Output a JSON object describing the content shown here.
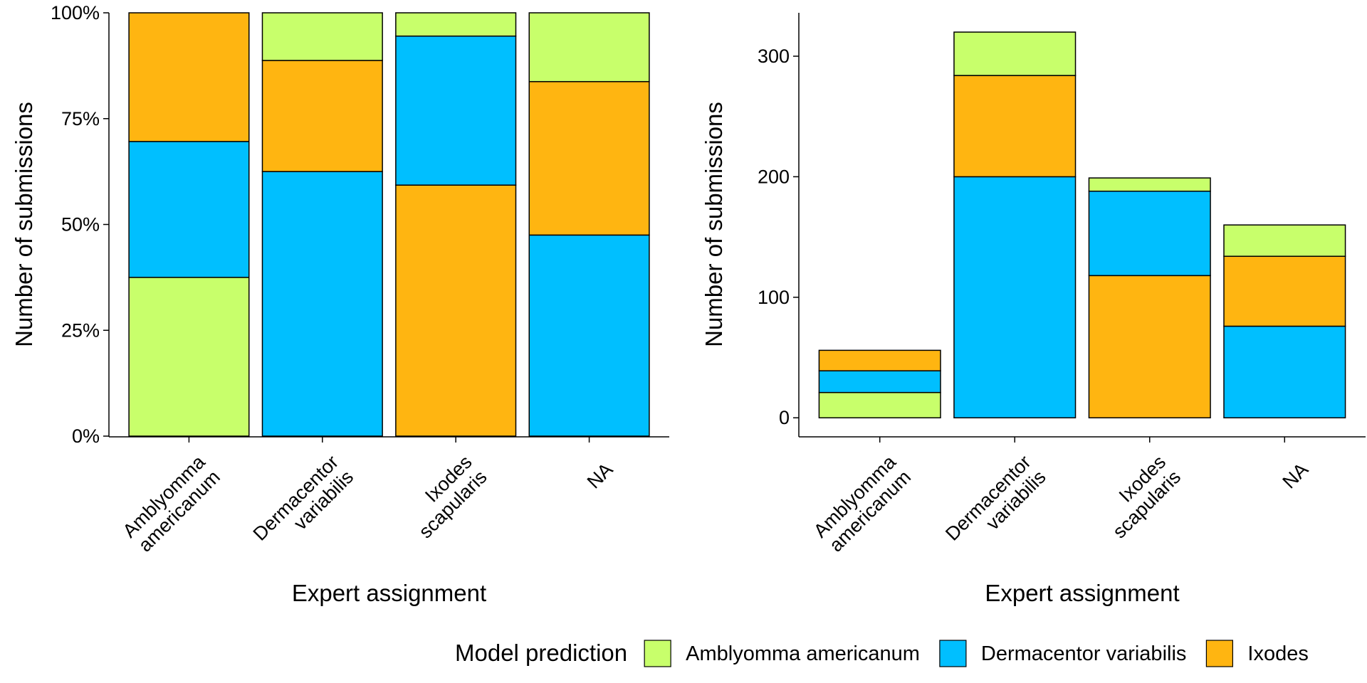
{
  "chart_data": [
    {
      "type": "bar",
      "stacked": true,
      "xlabel": "Expert assignment",
      "ylabel": "Number of submissions",
      "categories": [
        "Amblyomma americanum",
        "Dermacentor variabilis",
        "Ixodes scapularis",
        "NA"
      ],
      "series": [
        {
          "name": "Amblyomma americanum",
          "color": "#c8ff6b",
          "values": [
            37.5,
            11.25,
            5.5,
            16.25
          ]
        },
        {
          "name": "Dermacentor variabilis",
          "color": "#00bfff",
          "values": [
            32.1,
            62.5,
            35.2,
            47.5
          ]
        },
        {
          "name": "Ixodes",
          "color": "#ffb511",
          "values": [
            30.4,
            26.25,
            59.3,
            36.25
          ]
        }
      ],
      "stack_order": [
        [
          0,
          1,
          2
        ],
        [
          1,
          2,
          0
        ],
        [
          2,
          1,
          0
        ],
        [
          1,
          2,
          0
        ]
      ],
      "ylim": [
        0,
        100
      ],
      "yticks": [
        {
          "value": 0,
          "label": "0%"
        },
        {
          "value": 25,
          "label": "25%"
        },
        {
          "value": 50,
          "label": "50%"
        },
        {
          "value": 75,
          "label": "75%"
        },
        {
          "value": 100,
          "label": "100%"
        }
      ]
    },
    {
      "type": "bar",
      "stacked": true,
      "xlabel": "Expert assignment",
      "ylabel": "Number of submissions",
      "categories": [
        "Amblyomma americanum",
        "Dermacentor variabilis",
        "Ixodes scapularis",
        "NA"
      ],
      "series": [
        {
          "color": "#c8ff6b",
          "values": [
            21,
            36,
            11,
            26
          ]
        },
        {
          "color": "#00bfff",
          "values": [
            18,
            200,
            70,
            76
          ]
        },
        {
          "color": "#ffb511",
          "values": [
            17,
            84,
            118,
            58
          ]
        }
      ],
      "stack_order": [
        [
          0,
          1,
          2
        ],
        [
          1,
          2,
          0
        ],
        [
          2,
          1,
          0
        ],
        [
          1,
          2,
          0
        ]
      ],
      "ylim": [
        -15.2,
        336
      ],
      "yticks": [
        0,
        100,
        200,
        300
      ]
    }
  ],
  "legend_title": "Model prediction"
}
